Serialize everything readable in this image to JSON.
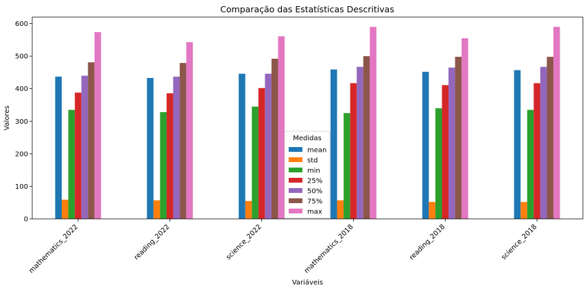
{
  "chart_data": {
    "type": "bar",
    "title": "Comparação das Estatísticas Descritivas",
    "xlabel": "Variáveis",
    "ylabel": "Valores",
    "ylim": [
      0,
      620
    ],
    "yticks": [
      0,
      100,
      200,
      300,
      400,
      500,
      600
    ],
    "grid": false,
    "legend_title": "Medidas",
    "legend_position": "lower-center",
    "categories": [
      "mathematics_2022",
      "reading_2022",
      "science_2022",
      "mathematics_2018",
      "reading_2018",
      "science_2018"
    ],
    "series": [
      {
        "name": "mean",
        "color": "#1f77b4",
        "values": [
          437,
          433,
          446,
          459,
          452,
          457
        ]
      },
      {
        "name": "std",
        "color": "#ff7f0e",
        "values": [
          59,
          57,
          55,
          57,
          52,
          52
        ]
      },
      {
        "name": "min",
        "color": "#2ca02c",
        "values": [
          335,
          328,
          345,
          325,
          340,
          335
        ]
      },
      {
        "name": "25%",
        "color": "#d62728",
        "values": [
          388,
          386,
          402,
          417,
          411,
          417
        ]
      },
      {
        "name": "50%",
        "color": "#9467bd",
        "values": [
          440,
          437,
          446,
          467,
          465,
          467
        ]
      },
      {
        "name": "75%",
        "color": "#8c564b",
        "values": [
          481,
          479,
          492,
          500,
          498,
          498
        ]
      },
      {
        "name": "max",
        "color": "#e377c2",
        "values": [
          574,
          543,
          561,
          590,
          555,
          590
        ]
      }
    ]
  }
}
